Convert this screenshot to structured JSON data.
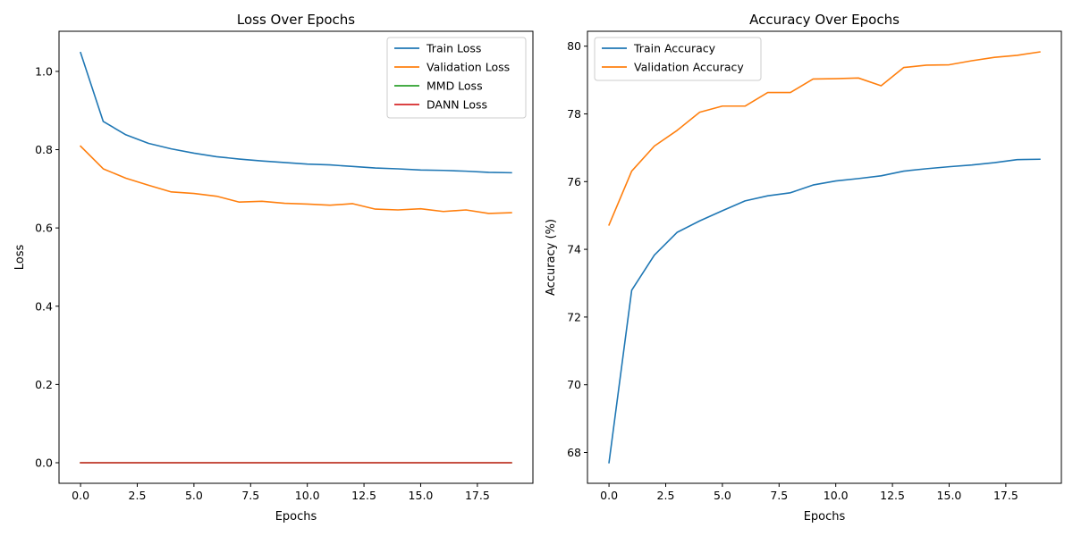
{
  "chart_data": [
    {
      "type": "line",
      "title": "Loss Over Epochs",
      "xlabel": "Epochs",
      "ylabel": "Loss",
      "xlim": [
        -0.95,
        19.95
      ],
      "ylim": [
        -0.0525,
        1.1025
      ],
      "xticks": [
        0.0,
        2.5,
        5.0,
        7.5,
        10.0,
        12.5,
        15.0,
        17.5
      ],
      "xtick_labels": [
        "0.0",
        "2.5",
        "5.0",
        "7.5",
        "10.0",
        "12.5",
        "15.0",
        "17.5"
      ],
      "yticks": [
        0.0,
        0.2,
        0.4,
        0.6,
        0.8,
        1.0
      ],
      "ytick_labels": [
        "0.0",
        "0.2",
        "0.4",
        "0.6",
        "0.8",
        "1.0"
      ],
      "grid": false,
      "legend_position": "top-right",
      "x": [
        0,
        1,
        2,
        3,
        4,
        5,
        6,
        7,
        8,
        9,
        10,
        11,
        12,
        13,
        14,
        15,
        16,
        17,
        18,
        19
      ],
      "series": [
        {
          "name": "Train Loss",
          "color": "#1f77b4",
          "values": [
            1.048,
            0.872,
            0.838,
            0.816,
            0.802,
            0.791,
            0.782,
            0.776,
            0.771,
            0.767,
            0.763,
            0.761,
            0.757,
            0.753,
            0.751,
            0.748,
            0.747,
            0.745,
            0.742,
            0.741
          ]
        },
        {
          "name": "Validation Loss",
          "color": "#ff7f0e",
          "values": [
            0.809,
            0.751,
            0.727,
            0.709,
            0.692,
            0.688,
            0.681,
            0.666,
            0.668,
            0.663,
            0.661,
            0.658,
            0.662,
            0.648,
            0.646,
            0.649,
            0.642,
            0.646,
            0.637,
            0.639
          ]
        },
        {
          "name": "MMD Loss",
          "color": "#2ca02c",
          "values": [
            0,
            0,
            0,
            0,
            0,
            0,
            0,
            0,
            0,
            0,
            0,
            0,
            0,
            0,
            0,
            0,
            0,
            0,
            0,
            0
          ]
        },
        {
          "name": "DANN Loss",
          "color": "#d62728",
          "values": [
            0,
            0,
            0,
            0,
            0,
            0,
            0,
            0,
            0,
            0,
            0,
            0,
            0,
            0,
            0,
            0,
            0,
            0,
            0,
            0
          ]
        }
      ]
    },
    {
      "type": "line",
      "title": "Accuracy Over Epochs",
      "xlabel": "Epochs",
      "ylabel": "Accuracy (%)",
      "xlim": [
        -0.95,
        19.95
      ],
      "ylim": [
        67.09,
        80.44
      ],
      "xticks": [
        0.0,
        2.5,
        5.0,
        7.5,
        10.0,
        12.5,
        15.0,
        17.5
      ],
      "xtick_labels": [
        "0.0",
        "2.5",
        "5.0",
        "7.5",
        "10.0",
        "12.5",
        "15.0",
        "17.5"
      ],
      "yticks": [
        68,
        70,
        72,
        74,
        76,
        78,
        80
      ],
      "ytick_labels": [
        "68",
        "70",
        "72",
        "74",
        "76",
        "78",
        "80"
      ],
      "grid": false,
      "legend_position": "top-left",
      "x": [
        0,
        1,
        2,
        3,
        4,
        5,
        6,
        7,
        8,
        9,
        10,
        11,
        12,
        13,
        14,
        15,
        16,
        17,
        18,
        19
      ],
      "series": [
        {
          "name": "Train Accuracy",
          "color": "#1f77b4",
          "values": [
            67.7,
            72.79,
            73.83,
            74.5,
            74.84,
            75.14,
            75.43,
            75.58,
            75.67,
            75.9,
            76.02,
            76.09,
            76.17,
            76.31,
            76.38,
            76.44,
            76.49,
            76.56,
            76.65,
            76.66
          ]
        },
        {
          "name": "Validation Accuracy",
          "color": "#ff7f0e",
          "values": [
            74.72,
            76.31,
            77.05,
            77.51,
            78.05,
            78.23,
            78.23,
            78.63,
            78.63,
            79.03,
            79.04,
            79.06,
            78.83,
            79.37,
            79.44,
            79.45,
            79.57,
            79.67,
            79.73,
            79.83
          ]
        }
      ]
    }
  ]
}
